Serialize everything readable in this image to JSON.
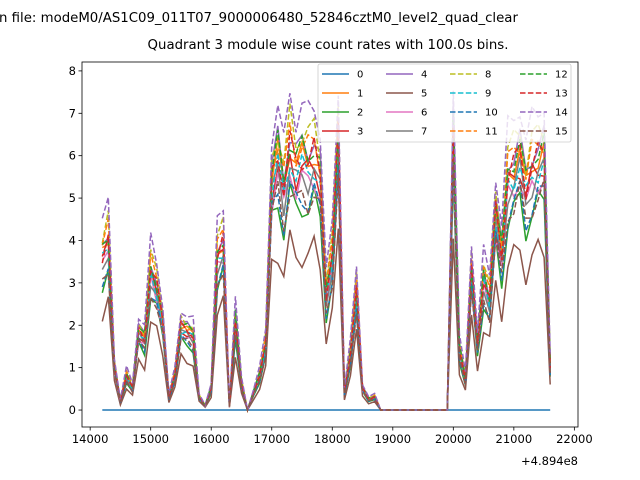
{
  "chart_data": {
    "type": "line",
    "suptitle": "n file: modeM0/AS1C09_011T07_9000006480_52846cztM0_level2_quad_clear",
    "title": "Quadrant 3 module wise count rates with 100.0s bins.",
    "xlabel": "",
    "ylabel": "",
    "x_offset_label": "+4.894e8",
    "xlim": [
      13865,
      22060
    ],
    "ylim": [
      -0.4,
      8.21
    ],
    "xticks": [
      14000,
      15000,
      16000,
      17000,
      18000,
      19000,
      20000,
      21000,
      22000
    ],
    "yticks": [
      0,
      1,
      2,
      3,
      4,
      5,
      6,
      7,
      8
    ],
    "grid": false,
    "legend_placement": "top-right",
    "x_start": 14200,
    "x_step": 100,
    "profile": [
      3.5,
      3.9,
      1.0,
      0.2,
      0.8,
      0.5,
      1.8,
      1.6,
      3.2,
      2.8,
      2.0,
      0.3,
      0.8,
      1.9,
      1.8,
      1.7,
      0.3,
      0.1,
      0.5,
      3.5,
      3.8,
      0.1,
      2.1,
      0.6,
      0.0,
      0.4,
      0.8,
      1.5,
      5.2,
      5.8,
      5.0,
      6.0,
      5.5,
      5.7,
      5.6,
      5.8,
      5.3,
      2.6,
      3.5,
      6.2,
      0.4,
      1.3,
      2.7,
      0.5,
      0.25,
      0.3,
      0,
      0,
      0,
      0,
      0,
      0,
      0,
      0,
      0,
      0,
      0,
      0,
      6.3,
      1.4,
      0.7,
      3.2,
      1.5,
      3.0,
      2.5,
      4.5,
      3.5,
      5.3,
      5.5,
      5.8,
      5.0,
      5.5,
      5.7,
      5.8,
      1.0
    ],
    "series": [
      {
        "name": "0",
        "color": "#1f77b4",
        "dashed": false,
        "scale": 0
      },
      {
        "name": "1",
        "color": "#ff7f0e",
        "dashed": false,
        "scale": 1.05
      },
      {
        "name": "2",
        "color": "#2ca02c",
        "dashed": false,
        "scale": 0.85
      },
      {
        "name": "3",
        "color": "#d62728",
        "dashed": false,
        "scale": 1.0
      },
      {
        "name": "4",
        "color": "#9467bd",
        "dashed": false,
        "scale": 1.1
      },
      {
        "name": "5",
        "color": "#8c564b",
        "dashed": false,
        "scale": 0.65
      },
      {
        "name": "6",
        "color": "#e377c2",
        "dashed": false,
        "scale": 0.95
      },
      {
        "name": "7",
        "color": "#7f7f7f",
        "dashed": false,
        "scale": 0.97
      },
      {
        "name": "8",
        "color": "#bcbd22",
        "dashed": true,
        "scale": 1.15
      },
      {
        "name": "9",
        "color": "#17becf",
        "dashed": true,
        "scale": 1.0
      },
      {
        "name": "10",
        "color": "#1f77b4",
        "dashed": true,
        "scale": 0.88
      },
      {
        "name": "11",
        "color": "#ff7f0e",
        "dashed": true,
        "scale": 1.1
      },
      {
        "name": "12",
        "color": "#2ca02c",
        "dashed": true,
        "scale": 1.08
      },
      {
        "name": "13",
        "color": "#d62728",
        "dashed": true,
        "scale": 1.05
      },
      {
        "name": "14",
        "color": "#9467bd",
        "dashed": true,
        "scale": 1.25
      },
      {
        "name": "15",
        "color": "#8c564b",
        "dashed": true,
        "scale": 0.88
      }
    ]
  }
}
